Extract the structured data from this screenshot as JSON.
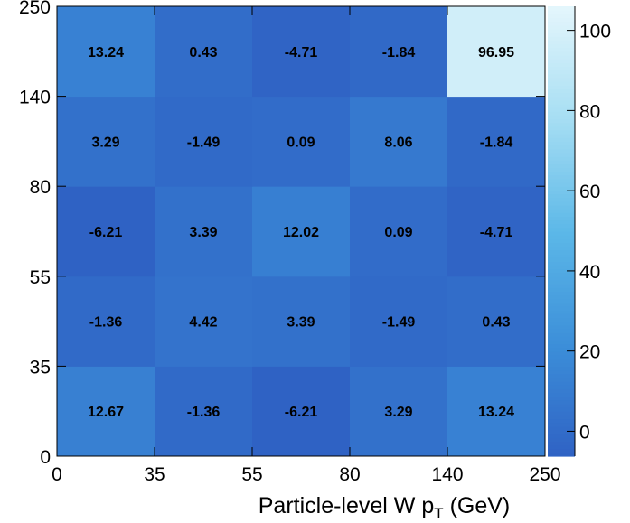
{
  "chart_data": {
    "type": "heatmap",
    "xlabel": "Particle-level W p",
    "xlabel_sub": "T",
    "xlabel_unit": " (GeV)",
    "x_bin_edges": [
      0,
      35,
      55,
      80,
      140,
      250
    ],
    "y_bin_edges": [
      0,
      35,
      55,
      80,
      140,
      250
    ],
    "x_tick_labels": [
      "0",
      "35",
      "55",
      "80",
      "140",
      "250"
    ],
    "y_tick_labels": [
      "0",
      "35",
      "55",
      "80",
      "140",
      "250"
    ],
    "values": [
      [
        12.67,
        -1.36,
        -6.21,
        3.29,
        13.24
      ],
      [
        -1.36,
        4.42,
        3.39,
        -1.49,
        0.43
      ],
      [
        -6.21,
        3.39,
        12.02,
        0.09,
        -4.71
      ],
      [
        3.29,
        -1.49,
        0.09,
        8.06,
        -1.84
      ],
      [
        13.24,
        0.43,
        -4.71,
        -1.84,
        96.95
      ]
    ],
    "colorbar": {
      "min": -6.21,
      "max": 106,
      "ticks": [
        0,
        20,
        40,
        60,
        80,
        100
      ],
      "tick_labels": [
        "0",
        "20",
        "40",
        "60",
        "80",
        "100"
      ],
      "colors": [
        "#2f62c4",
        "#3c8fd9",
        "#5cb8e8",
        "#a6def3",
        "#e4f6fc"
      ]
    },
    "grid": false,
    "legend": "colorbar-right"
  }
}
